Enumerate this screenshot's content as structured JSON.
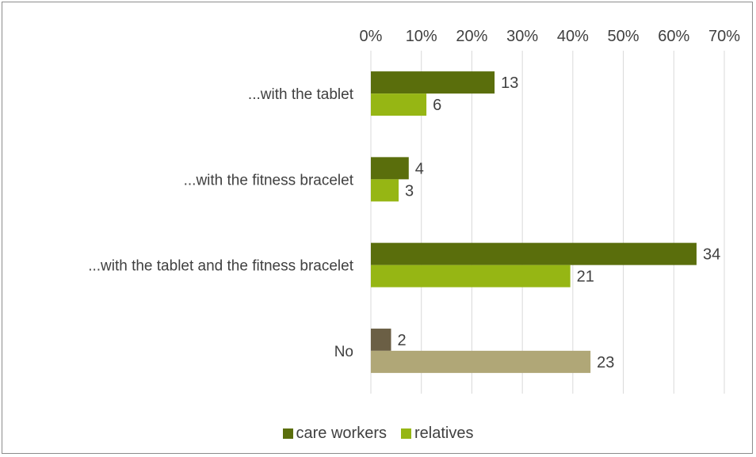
{
  "chart_data": {
    "type": "bar",
    "orientation": "horizontal",
    "title": "",
    "xlabel": "",
    "ylabel": "",
    "xlim": [
      0,
      70
    ],
    "x_ticks": [
      "0%",
      "10%",
      "20%",
      "30%",
      "40%",
      "50%",
      "60%",
      "70%"
    ],
    "x_axis_position": "top",
    "grid": true,
    "categories": [
      "...with the tablet",
      "...with the fitness bracelet",
      "...with the tablet and the fitness bracelet",
      "No"
    ],
    "series": [
      {
        "name": "care workers",
        "color": "#5a6e0c",
        "values": [
          24.5,
          7.5,
          64.5,
          4
        ],
        "labels": [
          "13",
          "4",
          "34",
          "2"
        ],
        "point_colors": [
          "#5a6e0c",
          "#5a6e0c",
          "#5a6e0c",
          "#6b5f45"
        ]
      },
      {
        "name": "relatives",
        "color": "#96b614",
        "values": [
          11,
          5.5,
          39.5,
          43.5
        ],
        "labels": [
          "6",
          "3",
          "21",
          "23"
        ],
        "point_colors": [
          "#96b614",
          "#96b614",
          "#96b614",
          "#b0a777"
        ]
      }
    ],
    "legend_position": "bottom"
  }
}
